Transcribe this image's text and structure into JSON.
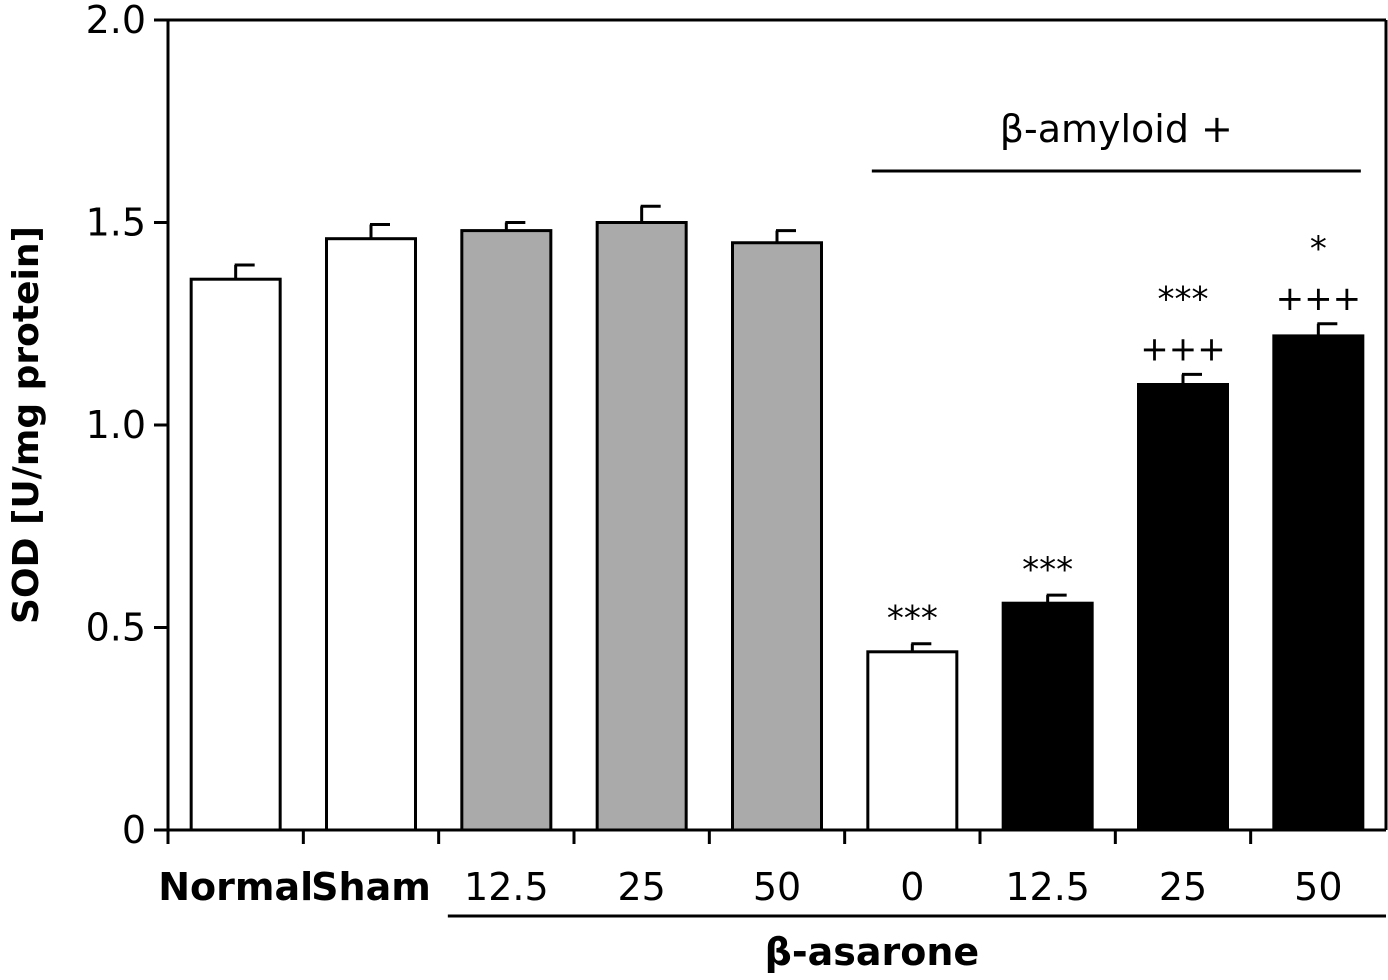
{
  "chart_data": {
    "type": "bar",
    "title": "",
    "xlabel": "",
    "ylabel": "SOD [U/mg protein]",
    "ylim": [
      0,
      2.0
    ],
    "yticks": [
      0,
      0.5,
      1.0,
      1.5,
      2.0
    ],
    "ytick_labels": [
      "0",
      "0.5",
      "1.0",
      "1.5",
      "2.0"
    ],
    "categories": [
      "Normal",
      "Sham",
      "12.5",
      "25",
      "50",
      "0",
      "12.5",
      "25",
      "50"
    ],
    "values": [
      1.36,
      1.46,
      1.48,
      1.5,
      1.45,
      0.44,
      0.56,
      1.1,
      1.22
    ],
    "errors": [
      0.035,
      0.035,
      0.02,
      0.04,
      0.03,
      0.02,
      0.02,
      0.025,
      0.03
    ],
    "bar_colors": [
      "#ffffff",
      "#ffffff",
      "#aaaaaa",
      "#aaaaaa",
      "#aaaaaa",
      "#ffffff",
      "#000000",
      "#000000",
      "#000000"
    ],
    "bold_categories": [
      0,
      1
    ],
    "annotations": [
      {
        "bar": 5,
        "lines": [
          "***"
        ]
      },
      {
        "bar": 6,
        "lines": [
          "***"
        ]
      },
      {
        "bar": 7,
        "lines": [
          "***",
          "+++"
        ]
      },
      {
        "bar": 8,
        "lines": [
          "*",
          "+++"
        ]
      }
    ],
    "groups": [
      {
        "label": "β-amyloid +",
        "from_bar": 5,
        "to_bar": 8,
        "position": "top",
        "bold": false
      },
      {
        "label": "β-asarone",
        "from_bar": 2,
        "to_bar": 8,
        "position": "bottom",
        "bold": true
      }
    ]
  }
}
